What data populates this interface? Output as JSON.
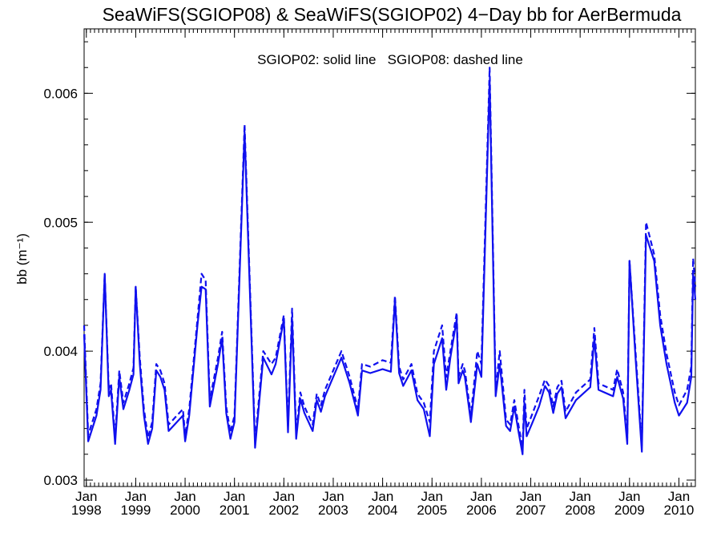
{
  "chart_data": {
    "type": "line",
    "title": "SeaWiFS(SGIOP08) & SeaWiFS(SGIOP02) 4−Day bb for AerBermuda",
    "annotation": "SGIOP02: solid line   SGIOP08: dashed line",
    "ylabel": "bb (m⁻¹)",
    "xlabel": "",
    "x_ticks": [
      {
        "top": "Jan",
        "bottom": "1998",
        "x": "1998-01"
      },
      {
        "top": "Jan",
        "bottom": "1999",
        "x": "1999-01"
      },
      {
        "top": "Jan",
        "bottom": "2000",
        "x": "2000-01"
      },
      {
        "top": "Jan",
        "bottom": "2001",
        "x": "2001-01"
      },
      {
        "top": "Jan",
        "bottom": "2002",
        "x": "2002-01"
      },
      {
        "top": "Jan",
        "bottom": "2003",
        "x": "2003-01"
      },
      {
        "top": "Jan",
        "bottom": "2004",
        "x": "2004-01"
      },
      {
        "top": "Jan",
        "bottom": "2005",
        "x": "2005-01"
      },
      {
        "top": "Jan",
        "bottom": "2006",
        "x": "2006-01"
      },
      {
        "top": "Jan",
        "bottom": "2007",
        "x": "2007-01"
      },
      {
        "top": "Jan",
        "bottom": "2008",
        "x": "2008-01"
      },
      {
        "top": "Jan",
        "bottom": "2009",
        "x": "2009-01"
      },
      {
        "top": "Jan",
        "bottom": "2010",
        "x": "2010-01"
      }
    ],
    "xlim": [
      "1997-12-15",
      "2010-05-01"
    ],
    "ylim": [
      0.00295,
      0.0065
    ],
    "y_ticks": [
      {
        "value": 0.003,
        "label": "0.003"
      },
      {
        "value": 0.004,
        "label": "0.004"
      },
      {
        "value": 0.005,
        "label": "0.005"
      },
      {
        "value": 0.006,
        "label": "0.006"
      }
    ],
    "line_color": "#1010ee",
    "series": [
      {
        "name": "SGIOP02",
        "style": "solid",
        "points": [
          [
            "1997-12-15",
            0.00413
          ],
          [
            "1998-01-15",
            0.0033
          ],
          [
            "1998-03-15",
            0.0035
          ],
          [
            "1998-04-15",
            0.0037
          ],
          [
            "1998-05-15",
            0.0046
          ],
          [
            "1998-06-15",
            0.00365
          ],
          [
            "1998-07-01",
            0.0037
          ],
          [
            "1998-08-01",
            0.00328
          ],
          [
            "1998-09-01",
            0.0038
          ],
          [
            "1998-10-01",
            0.00355
          ],
          [
            "1998-11-15",
            0.0037
          ],
          [
            "1998-12-15",
            0.00382
          ],
          [
            "1999-01-01",
            0.0045
          ],
          [
            "1999-02-01",
            0.0039
          ],
          [
            "1999-03-01",
            0.0035
          ],
          [
            "1999-04-01",
            0.00328
          ],
          [
            "1999-05-01",
            0.0034
          ],
          [
            "1999-06-01",
            0.00385
          ],
          [
            "1999-07-01",
            0.0038
          ],
          [
            "1999-08-01",
            0.0037
          ],
          [
            "1999-09-01",
            0.00338
          ],
          [
            "1999-11-01",
            0.00345
          ],
          [
            "1999-12-15",
            0.0035
          ],
          [
            "2000-01-01",
            0.0033
          ],
          [
            "2000-02-01",
            0.0035
          ],
          [
            "2000-04-01",
            0.0042
          ],
          [
            "2000-05-01",
            0.0045
          ],
          [
            "2000-06-01",
            0.00448
          ],
          [
            "2000-07-01",
            0.00357
          ],
          [
            "2000-09-01",
            0.0039
          ],
          [
            "2000-10-01",
            0.0041
          ],
          [
            "2000-11-01",
            0.00352
          ],
          [
            "2000-12-01",
            0.00332
          ],
          [
            "2001-01-01",
            0.00345
          ],
          [
            "2001-03-15",
            0.0057
          ],
          [
            "2001-06-01",
            0.00325
          ],
          [
            "2001-08-01",
            0.00395
          ],
          [
            "2001-10-01",
            0.00382
          ],
          [
            "2001-11-01",
            0.0039
          ],
          [
            "2002-01-01",
            0.00425
          ],
          [
            "2002-02-01",
            0.00337
          ],
          [
            "2002-03-01",
            0.00425
          ],
          [
            "2002-04-01",
            0.00332
          ],
          [
            "2002-05-01",
            0.00363
          ],
          [
            "2002-06-01",
            0.00352
          ],
          [
            "2002-08-01",
            0.00338
          ],
          [
            "2002-09-01",
            0.00362
          ],
          [
            "2002-10-01",
            0.00353
          ],
          [
            "2002-11-01",
            0.00365
          ],
          [
            "2003-03-01",
            0.00395
          ],
          [
            "2003-05-01",
            0.00375
          ],
          [
            "2003-07-01",
            0.0035
          ],
          [
            "2003-08-01",
            0.00385
          ],
          [
            "2003-10-01",
            0.00383
          ],
          [
            "2004-01-01",
            0.00386
          ],
          [
            "2004-03-01",
            0.00384
          ],
          [
            "2004-04-01",
            0.0044
          ],
          [
            "2004-05-01",
            0.00383
          ],
          [
            "2004-06-01",
            0.00373
          ],
          [
            "2004-08-01",
            0.00385
          ],
          [
            "2004-09-15",
            0.00362
          ],
          [
            "2004-11-01",
            0.00355
          ],
          [
            "2004-12-15",
            0.00334
          ],
          [
            "2005-01-15",
            0.0039
          ],
          [
            "2005-03-15",
            0.0041
          ],
          [
            "2005-04-15",
            0.0037
          ],
          [
            "2005-05-15",
            0.00395
          ],
          [
            "2005-07-01",
            0.00425
          ],
          [
            "2005-07-15",
            0.00375
          ],
          [
            "2005-08-15",
            0.00385
          ],
          [
            "2005-09-01",
            0.0038
          ],
          [
            "2005-10-15",
            0.00345
          ],
          [
            "2005-12-01",
            0.0039
          ],
          [
            "2006-01-01",
            0.0038
          ],
          [
            "2006-03-01",
            0.0061
          ],
          [
            "2006-04-15",
            0.00365
          ],
          [
            "2006-05-15",
            0.0039
          ],
          [
            "2006-07-01",
            0.00342
          ],
          [
            "2006-08-01",
            0.00338
          ],
          [
            "2006-09-01",
            0.00357
          ],
          [
            "2006-10-01",
            0.00338
          ],
          [
            "2006-11-01",
            0.0032
          ],
          [
            "2006-11-15",
            0.0036
          ],
          [
            "2006-12-01",
            0.00334
          ],
          [
            "2007-01-15",
            0.00345
          ],
          [
            "2007-03-01",
            0.00357
          ],
          [
            "2007-04-15",
            0.00373
          ],
          [
            "2007-05-15",
            0.00368
          ],
          [
            "2007-06-15",
            0.00352
          ],
          [
            "2007-07-15",
            0.00367
          ],
          [
            "2007-08-15",
            0.00372
          ],
          [
            "2007-09-15",
            0.00348
          ],
          [
            "2007-12-01",
            0.00362
          ],
          [
            "2008-03-15",
            0.00372
          ],
          [
            "2008-04-15",
            0.0041
          ],
          [
            "2008-05-15",
            0.0037
          ],
          [
            "2008-09-01",
            0.00365
          ],
          [
            "2008-10-01",
            0.0038
          ],
          [
            "2008-11-15",
            0.00363
          ],
          [
            "2008-12-15",
            0.00328
          ],
          [
            "2009-01-01",
            0.0047
          ],
          [
            "2009-02-15",
            0.00395
          ],
          [
            "2009-04-01",
            0.00322
          ],
          [
            "2009-05-01",
            0.0049
          ],
          [
            "2009-07-01",
            0.0047
          ],
          [
            "2009-08-15",
            0.0042
          ],
          [
            "2009-10-01",
            0.0039
          ],
          [
            "2009-12-01",
            0.0036
          ],
          [
            "2010-01-01",
            0.0035
          ],
          [
            "2010-03-01",
            0.0036
          ],
          [
            "2010-04-01",
            0.0038
          ],
          [
            "2010-04-15",
            0.0046
          ],
          [
            "2010-05-01",
            0.0044
          ]
        ]
      },
      {
        "name": "SGIOP08",
        "style": "dashed",
        "points": [
          [
            "1997-12-15",
            0.0042
          ],
          [
            "1998-01-15",
            0.00335
          ],
          [
            "1998-03-15",
            0.00355
          ],
          [
            "1998-04-15",
            0.00375
          ],
          [
            "1998-05-15",
            0.0046
          ],
          [
            "1998-06-15",
            0.0037
          ],
          [
            "1998-07-01",
            0.00375
          ],
          [
            "1998-08-01",
            0.00333
          ],
          [
            "1998-09-01",
            0.00385
          ],
          [
            "1998-10-01",
            0.0036
          ],
          [
            "1998-11-15",
            0.00375
          ],
          [
            "1998-12-15",
            0.00387
          ],
          [
            "1999-01-01",
            0.0045
          ],
          [
            "1999-02-01",
            0.00395
          ],
          [
            "1999-03-01",
            0.00355
          ],
          [
            "1999-04-01",
            0.00333
          ],
          [
            "1999-05-01",
            0.00345
          ],
          [
            "1999-06-01",
            0.0039
          ],
          [
            "1999-07-01",
            0.00385
          ],
          [
            "1999-08-01",
            0.00375
          ],
          [
            "1999-09-01",
            0.00343
          ],
          [
            "1999-11-01",
            0.0035
          ],
          [
            "1999-12-15",
            0.00355
          ],
          [
            "2000-01-01",
            0.00335
          ],
          [
            "2000-02-01",
            0.00355
          ],
          [
            "2000-04-01",
            0.00425
          ],
          [
            "2000-05-01",
            0.0046
          ],
          [
            "2000-06-01",
            0.00455
          ],
          [
            "2000-07-01",
            0.00362
          ],
          [
            "2000-09-01",
            0.00395
          ],
          [
            "2000-10-01",
            0.00415
          ],
          [
            "2000-11-01",
            0.00357
          ],
          [
            "2000-12-01",
            0.00337
          ],
          [
            "2001-01-01",
            0.0035
          ],
          [
            "2001-03-15",
            0.00576
          ],
          [
            "2001-06-01",
            0.0033
          ],
          [
            "2001-08-01",
            0.004
          ],
          [
            "2001-10-01",
            0.0039
          ],
          [
            "2001-11-01",
            0.00395
          ],
          [
            "2002-01-01",
            0.00428
          ],
          [
            "2002-02-01",
            0.00342
          ],
          [
            "2002-03-01",
            0.00433
          ],
          [
            "2002-04-01",
            0.00337
          ],
          [
            "2002-05-01",
            0.00368
          ],
          [
            "2002-06-01",
            0.00357
          ],
          [
            "2002-08-01",
            0.00343
          ],
          [
            "2002-09-01",
            0.00367
          ],
          [
            "2002-10-01",
            0.00358
          ],
          [
            "2002-11-01",
            0.0037
          ],
          [
            "2003-03-01",
            0.004
          ],
          [
            "2003-05-01",
            0.0038
          ],
          [
            "2003-07-01",
            0.00355
          ],
          [
            "2003-08-01",
            0.0039
          ],
          [
            "2003-10-01",
            0.00388
          ],
          [
            "2004-01-01",
            0.00393
          ],
          [
            "2004-03-01",
            0.00391
          ],
          [
            "2004-04-01",
            0.00443
          ],
          [
            "2004-05-01",
            0.00388
          ],
          [
            "2004-06-01",
            0.00378
          ],
          [
            "2004-08-01",
            0.0039
          ],
          [
            "2004-09-15",
            0.00367
          ],
          [
            "2004-11-01",
            0.0036
          ],
          [
            "2004-12-15",
            0.00345
          ],
          [
            "2005-01-15",
            0.004
          ],
          [
            "2005-03-15",
            0.0042
          ],
          [
            "2005-04-15",
            0.0038
          ],
          [
            "2005-05-15",
            0.004
          ],
          [
            "2005-07-01",
            0.0043
          ],
          [
            "2005-07-15",
            0.0038
          ],
          [
            "2005-08-15",
            0.0039
          ],
          [
            "2005-09-01",
            0.00385
          ],
          [
            "2005-10-15",
            0.0035
          ],
          [
            "2005-12-01",
            0.004
          ],
          [
            "2006-01-01",
            0.0039
          ],
          [
            "2006-03-01",
            0.0062
          ],
          [
            "2006-04-15",
            0.0037
          ],
          [
            "2006-05-15",
            0.004
          ],
          [
            "2006-07-01",
            0.00347
          ],
          [
            "2006-08-01",
            0.00343
          ],
          [
            "2006-09-01",
            0.00362
          ],
          [
            "2006-10-01",
            0.00343
          ],
          [
            "2006-11-01",
            0.00325
          ],
          [
            "2006-11-15",
            0.0037
          ],
          [
            "2006-12-01",
            0.0034
          ],
          [
            "2007-01-15",
            0.00352
          ],
          [
            "2007-03-01",
            0.00365
          ],
          [
            "2007-04-15",
            0.00378
          ],
          [
            "2007-05-15",
            0.00373
          ],
          [
            "2007-06-15",
            0.00357
          ],
          [
            "2007-07-15",
            0.00372
          ],
          [
            "2007-08-15",
            0.00377
          ],
          [
            "2007-09-15",
            0.00353
          ],
          [
            "2007-12-01",
            0.00368
          ],
          [
            "2008-03-15",
            0.00378
          ],
          [
            "2008-04-15",
            0.00418
          ],
          [
            "2008-05-15",
            0.00375
          ],
          [
            "2008-09-01",
            0.0037
          ],
          [
            "2008-10-01",
            0.00386
          ],
          [
            "2008-11-15",
            0.00368
          ],
          [
            "2008-12-15",
            0.00333
          ],
          [
            "2009-01-01",
            0.0047
          ],
          [
            "2009-02-15",
            0.004
          ],
          [
            "2009-04-01",
            0.00327
          ],
          [
            "2009-05-01",
            0.005
          ],
          [
            "2009-07-01",
            0.00475
          ],
          [
            "2009-08-15",
            0.00428
          ],
          [
            "2009-10-01",
            0.00398
          ],
          [
            "2009-12-01",
            0.00368
          ],
          [
            "2010-01-01",
            0.00358
          ],
          [
            "2010-03-01",
            0.0037
          ],
          [
            "2010-04-01",
            0.00388
          ],
          [
            "2010-04-15",
            0.00472
          ],
          [
            "2010-05-01",
            0.0045
          ]
        ]
      }
    ]
  }
}
